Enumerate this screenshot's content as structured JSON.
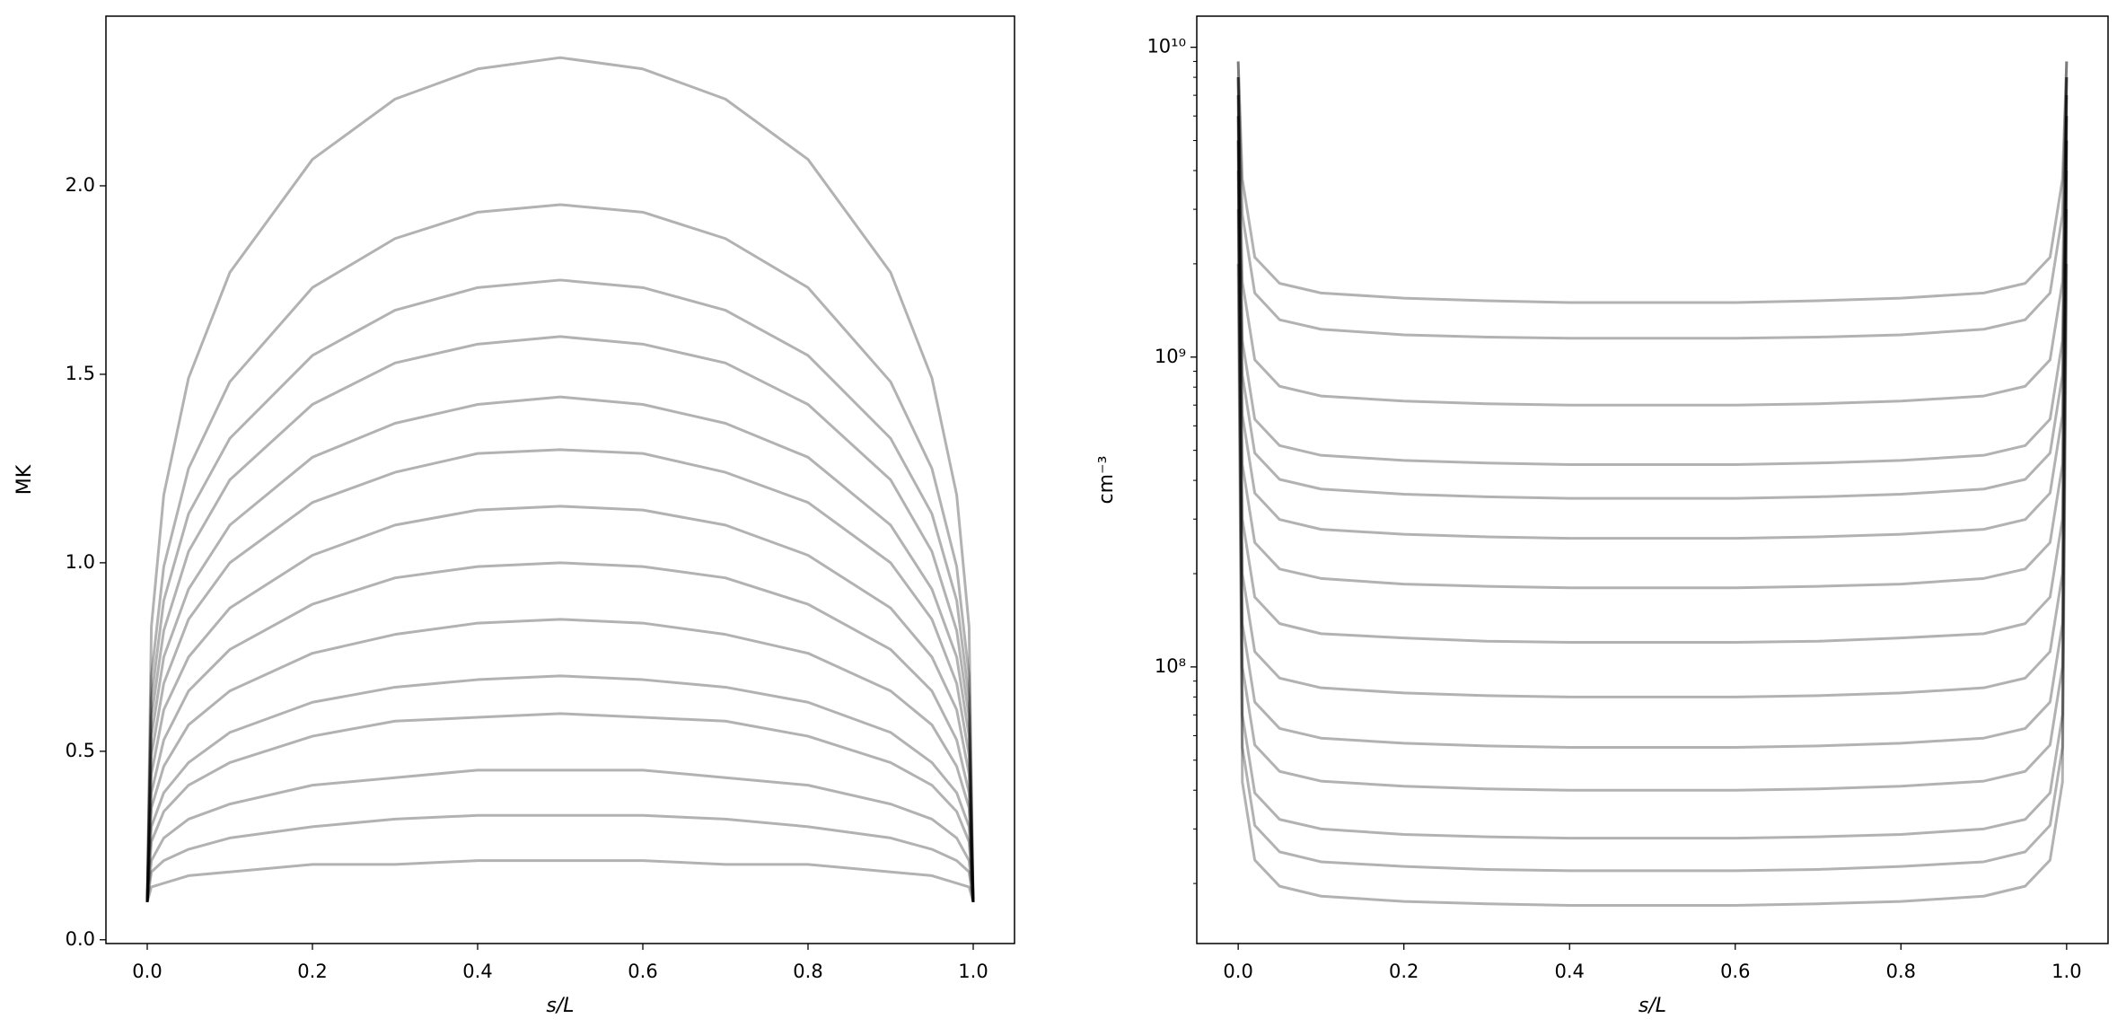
{
  "chart_data": [
    {
      "type": "line",
      "xlabel": "s/L",
      "ylabel": "MK",
      "color": "#000000",
      "alpha": 0.3,
      "xlim": [
        -0.05,
        1.05
      ],
      "ylim": [
        -0.01,
        2.45
      ],
      "xticks": [
        {
          "value": 0,
          "label": "0.0"
        },
        0.2,
        0.4,
        0.6,
        0.8,
        {
          "value": 1,
          "label": "1.0"
        }
      ],
      "yticks": [
        {
          "value": 0,
          "label": "0.0"
        },
        0.5,
        {
          "value": 1,
          "label": "1.0"
        },
        1.5,
        {
          "value": 2,
          "label": "2.0"
        }
      ],
      "x": [
        0,
        0.005,
        0.02,
        0.05,
        0.1,
        0.2,
        0.3,
        0.4,
        0.5,
        0.6,
        0.7,
        0.8,
        0.9,
        0.95,
        0.98,
        0.995,
        1
      ],
      "series": [
        {
          "values": [
            0.1,
            0.14,
            0.15,
            0.17,
            0.18,
            0.2,
            0.2,
            0.21,
            0.21,
            0.21,
            0.2,
            0.2,
            0.18,
            0.17,
            0.15,
            0.14,
            0.1
          ]
        },
        {
          "values": [
            0.1,
            0.18,
            0.21,
            0.24,
            0.27,
            0.3,
            0.32,
            0.33,
            0.33,
            0.33,
            0.32,
            0.3,
            0.27,
            0.24,
            0.21,
            0.18,
            0.1
          ]
        },
        {
          "values": [
            0.1,
            0.21,
            0.27,
            0.32,
            0.36,
            0.41,
            0.43,
            0.45,
            0.45,
            0.45,
            0.43,
            0.41,
            0.36,
            0.32,
            0.27,
            0.21,
            0.1
          ]
        },
        {
          "values": [
            0.1,
            0.26,
            0.34,
            0.41,
            0.47,
            0.54,
            0.58,
            0.59,
            0.6,
            0.59,
            0.58,
            0.54,
            0.47,
            0.41,
            0.34,
            0.26,
            0.1
          ]
        },
        {
          "values": [
            0.1,
            0.3,
            0.39,
            0.47,
            0.55,
            0.63,
            0.67,
            0.69,
            0.7,
            0.69,
            0.67,
            0.63,
            0.55,
            0.47,
            0.39,
            0.3,
            0.1
          ]
        },
        {
          "values": [
            0.1,
            0.35,
            0.46,
            0.57,
            0.66,
            0.76,
            0.81,
            0.84,
            0.85,
            0.84,
            0.81,
            0.76,
            0.66,
            0.57,
            0.46,
            0.35,
            0.1
          ]
        },
        {
          "values": [
            0.1,
            0.39,
            0.53,
            0.66,
            0.77,
            0.89,
            0.96,
            0.99,
            1.0,
            0.99,
            0.96,
            0.89,
            0.77,
            0.66,
            0.53,
            0.39,
            0.1
          ]
        },
        {
          "values": [
            0.1,
            0.44,
            0.61,
            0.75,
            0.88,
            1.02,
            1.1,
            1.14,
            1.15,
            1.14,
            1.1,
            1.02,
            0.88,
            0.75,
            0.61,
            0.44,
            0.1
          ]
        },
        {
          "values": [
            0.1,
            0.49,
            0.68,
            0.85,
            1.0,
            1.16,
            1.24,
            1.29,
            1.3,
            1.29,
            1.24,
            1.16,
            1.0,
            0.85,
            0.68,
            0.49,
            0.1
          ]
        },
        {
          "values": [
            0.1,
            0.54,
            0.75,
            0.93,
            1.1,
            1.28,
            1.37,
            1.42,
            1.44,
            1.42,
            1.37,
            1.28,
            1.1,
            0.93,
            0.75,
            0.54,
            0.1
          ]
        },
        {
          "values": [
            0.1,
            0.59,
            0.82,
            1.03,
            1.22,
            1.42,
            1.53,
            1.58,
            1.6,
            1.58,
            1.53,
            1.42,
            1.22,
            1.03,
            0.82,
            0.59,
            0.1
          ]
        },
        {
          "values": [
            0.1,
            0.64,
            0.9,
            1.13,
            1.33,
            1.55,
            1.67,
            1.73,
            1.75,
            1.73,
            1.67,
            1.55,
            1.33,
            1.13,
            0.9,
            0.64,
            0.1
          ]
        },
        {
          "values": [
            0.1,
            0.7,
            0.99,
            1.25,
            1.48,
            1.73,
            1.86,
            1.93,
            1.95,
            1.93,
            1.86,
            1.73,
            1.48,
            1.25,
            0.99,
            0.7,
            0.1
          ]
        },
        {
          "values": [
            0.1,
            0.83,
            1.18,
            1.49,
            1.77,
            2.07,
            2.23,
            2.31,
            2.34,
            2.31,
            2.23,
            2.07,
            1.77,
            1.49,
            1.18,
            0.83,
            0.1
          ]
        }
      ]
    },
    {
      "type": "line",
      "xlabel": "s/L",
      "ylabel": "cm⁻³",
      "color": "#000000",
      "alpha": 0.3,
      "log_y": true,
      "xlim": [
        -0.05,
        1.05
      ],
      "ylim": [
        12800000,
        12600000000
      ],
      "xticks": [
        {
          "value": 0,
          "label": "0.0"
        },
        0.2,
        0.4,
        0.6,
        0.8,
        {
          "value": 1,
          "label": "1.0"
        }
      ],
      "yticks": [
        {
          "value": 100000000,
          "label": "10⁸"
        },
        {
          "value": 1000000000,
          "label": "10⁹"
        },
        {
          "value": 10000000000,
          "label": "10¹⁰"
        }
      ],
      "yminorticks": [
        20000000,
        30000000,
        40000000,
        50000000,
        60000000,
        70000000,
        80000000,
        90000000,
        200000000,
        300000000,
        400000000,
        500000000,
        600000000,
        700000000,
        800000000,
        900000000,
        2000000000,
        3000000000,
        4000000000,
        5000000000,
        6000000000,
        7000000000,
        8000000000,
        9000000000
      ],
      "x": [
        0,
        0.005,
        0.02,
        0.05,
        0.1,
        0.2,
        0.3,
        0.4,
        0.5,
        0.6,
        0.7,
        0.8,
        0.9,
        0.95,
        0.98,
        0.995,
        1
      ],
      "series": [
        {
          "values": [
            2000000000.0,
            42500000.0,
            23800000.0,
            19600000.0,
            18200000.0,
            17500000.0,
            17200000.0,
            17000000.0,
            17000000.0,
            17000000.0,
            17200000.0,
            17500000.0,
            18200000.0,
            19600000.0,
            23800000.0,
            42500000.0,
            2000000000.0
          ]
        },
        {
          "values": [
            3000000000.0,
            55000000.0,
            30800000.0,
            25300000.0,
            23500000.0,
            22700000.0,
            22200000.0,
            22000000.0,
            22000000.0,
            22000000.0,
            22200000.0,
            22700000.0,
            23500000.0,
            25300000.0,
            30800000.0,
            55000000.0,
            3000000000.0
          ]
        },
        {
          "values": [
            4000000000.0,
            70000000.0,
            39200000.0,
            32200000.0,
            30000000.0,
            28800000.0,
            28300000.0,
            28000000.0,
            28000000.0,
            28000000.0,
            28300000.0,
            28800000.0,
            30000000.0,
            32200000.0,
            39200000.0,
            70000000.0,
            4000000000.0
          ]
        },
        {
          "values": [
            5000000000.0,
            100000000.0,
            56000000.0,
            46000000.0,
            42800000.0,
            41200000.0,
            40400000.0,
            40000000.0,
            40000000.0,
            40000000.0,
            40400000.0,
            41200000.0,
            42800000.0,
            46000000.0,
            56000000.0,
            100000000.0,
            5000000000.0
          ]
        },
        {
          "values": [
            5000000000.0,
            138000000.0,
            77000000.0,
            63300000.0,
            58900000.0,
            56700000.0,
            55600000.0,
            55000000.0,
            55000000.0,
            55000000.0,
            55600000.0,
            56700000.0,
            58900000.0,
            63300000.0,
            77000000.0,
            138000000.0,
            5000000000.0
          ]
        },
        {
          "values": [
            6000000000.0,
            200000000.0,
            112000000.0,
            92000000.0,
            85600000.0,
            82400000.0,
            80800000.0,
            80000000.0,
            80000000.0,
            80000000.0,
            80800000.0,
            82400000.0,
            85600000.0,
            92000000.0,
            112000000.0,
            200000000.0,
            6000000000.0
          ]
        },
        {
          "values": [
            6000000000.0,
            300000000.0,
            168000000.0,
            138000000.0,
            128000000.0,
            124000000.0,
            121000000.0,
            120000000.0,
            120000000.0,
            120000000.0,
            121000000.0,
            124000000.0,
            128000000.0,
            138000000.0,
            168000000.0,
            300000000.0,
            6000000000.0
          ]
        },
        {
          "values": [
            7000000000.0,
            450000000.0,
            252000000.0,
            207000000.0,
            193000000.0,
            185000000.0,
            182000000.0,
            180000000.0,
            180000000.0,
            180000000.0,
            182000000.0,
            185000000.0,
            193000000.0,
            207000000.0,
            252000000.0,
            450000000.0,
            7000000000.0
          ]
        },
        {
          "values": [
            7000000000.0,
            650000000.0,
            364000000.0,
            299000000.0,
            278000000.0,
            268000000.0,
            263000000.0,
            260000000.0,
            260000000.0,
            260000000.0,
            263000000.0,
            268000000.0,
            278000000.0,
            299000000.0,
            364000000.0,
            650000000.0,
            7000000000.0
          ]
        },
        {
          "values": [
            8000000000.0,
            875000000.0,
            490000000.0,
            403000000.0,
            375000000.0,
            361000000.0,
            354000000.0,
            350000000.0,
            350000000.0,
            350000000.0,
            354000000.0,
            361000000.0,
            375000000.0,
            403000000.0,
            490000000.0,
            875000000.0,
            8000000000.0
          ]
        },
        {
          "values": [
            8000000000.0,
            1130000000.0,
            630000000.0,
            518000000.0,
            482000000.0,
            464000000.0,
            455000000.0,
            450000000.0,
            450000000.0,
            450000000.0,
            455000000.0,
            464000000.0,
            482000000.0,
            518000000.0,
            630000000.0,
            1130000000.0,
            8000000000.0
          ]
        },
        {
          "values": [
            8000000000.0,
            1750000000.0,
            980000000.0,
            805000000.0,
            749000000.0,
            721000000.0,
            707000000.0,
            700000000.0,
            700000000.0,
            700000000.0,
            707000000.0,
            721000000.0,
            749000000.0,
            805000000.0,
            980000000.0,
            1750000000.0,
            8000000000.0
          ]
        },
        {
          "values": [
            9000000000.0,
            2880000000.0,
            1610000000.0,
            1320000000.0,
            1230000000.0,
            1180000000.0,
            1160000000.0,
            1150000000.0,
            1150000000.0,
            1150000000.0,
            1160000000.0,
            1180000000.0,
            1230000000.0,
            1320000000.0,
            1610000000.0,
            2880000000.0,
            9000000000.0
          ]
        },
        {
          "values": [
            9000000000.0,
            3750000000.0,
            2100000000.0,
            1730000000.0,
            1610000000.0,
            1550000000.0,
            1520000000.0,
            1500000000.0,
            1500000000.0,
            1500000000.0,
            1520000000.0,
            1550000000.0,
            1610000000.0,
            1730000000.0,
            2100000000.0,
            3750000000.0,
            9000000000.0
          ]
        }
      ]
    }
  ]
}
